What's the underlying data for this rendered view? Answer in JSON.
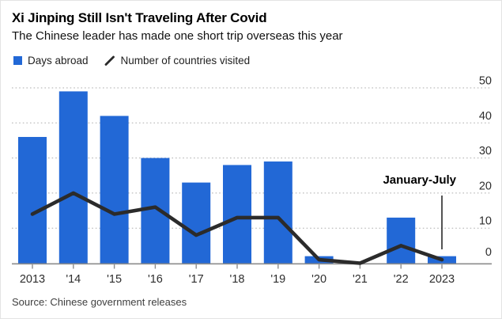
{
  "source": "Source: Chinese government releases",
  "colors": {
    "bar": "#2268d6",
    "line": "#2b2b2b",
    "grid": "#adadad",
    "axis": "#8c8c8c",
    "text": "#2e2e2e",
    "annotation_line": "#1a1a1a"
  },
  "chart_data": {
    "type": "bar",
    "title": "Xi Jinping Still Isn't Traveling After Covid",
    "subtitle": "The Chinese leader has made one short trip overseas this year",
    "categories": [
      "2013",
      "'14",
      "'15",
      "'16",
      "'17",
      "'18",
      "'19",
      "'20",
      "'21",
      "'22",
      "2023"
    ],
    "series": [
      {
        "name": "Days abroad",
        "type": "bar",
        "values": [
          36,
          49,
          42,
          30,
          23,
          28,
          29,
          2,
          0,
          13,
          2
        ]
      },
      {
        "name": "Number of countries visited",
        "type": "line",
        "values": [
          14,
          20,
          14,
          16,
          8,
          13,
          13,
          1,
          0,
          5,
          1
        ]
      }
    ],
    "xlabel": "",
    "ylabel": "",
    "ylim": [
      0,
      50
    ],
    "yticks": [
      0,
      10,
      20,
      30,
      40,
      50
    ],
    "grid": "horizontal-dotted",
    "yaxis_position": "right",
    "legend_position": "top-left",
    "annotation": {
      "label": "January-July",
      "category": "2023"
    }
  }
}
